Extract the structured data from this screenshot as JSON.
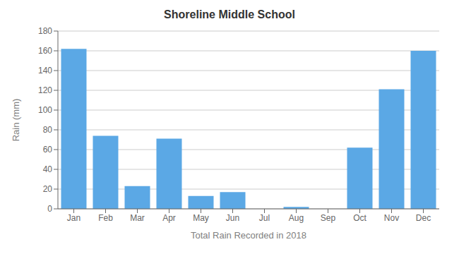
{
  "chart_data": {
    "type": "bar",
    "title": "Shoreline Middle School",
    "xlabel": "Total Rain Recorded in 2018",
    "ylabel": "Rain (mm)",
    "categories": [
      "Jan",
      "Feb",
      "Mar",
      "Apr",
      "May",
      "Jun",
      "Jul",
      "Aug",
      "Sep",
      "Oct",
      "Nov",
      "Dec"
    ],
    "values": [
      162,
      74,
      23,
      71,
      13,
      17,
      0,
      2,
      0,
      62,
      121,
      160
    ],
    "color": "#5BA8E5",
    "ylim": [
      0,
      180
    ],
    "yticks": [
      0,
      20,
      40,
      60,
      80,
      100,
      120,
      140,
      160,
      180
    ],
    "grid": true
  }
}
